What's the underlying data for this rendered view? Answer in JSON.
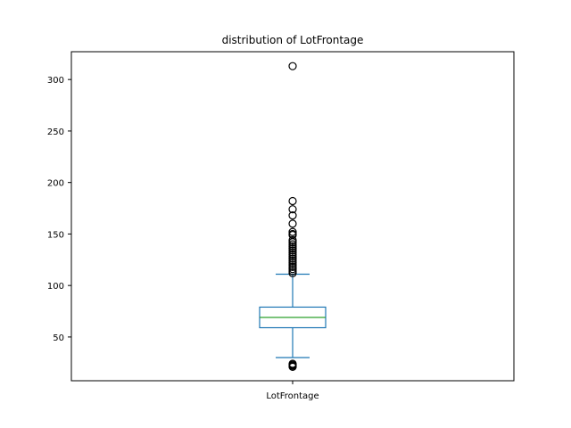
{
  "chart_data": {
    "type": "boxplot",
    "title": "distribution of LotFrontage",
    "xlabel": "",
    "ylabel": "",
    "categories": [
      "LotFrontage"
    ],
    "ylim": [
      7.5,
      327
    ],
    "yticks": [
      50,
      100,
      150,
      200,
      250,
      300
    ],
    "grid": false,
    "legend": "none",
    "series": [
      {
        "category": "LotFrontage",
        "whisker_low": 30,
        "q1": 59,
        "median": 69,
        "q3": 79,
        "whisker_high": 111,
        "outliers": [
          21,
          22,
          23,
          24,
          112,
          114,
          116,
          118,
          120,
          122,
          124,
          126,
          128,
          130,
          132,
          134,
          136,
          138,
          140,
          142,
          144,
          149,
          150,
          152,
          160,
          168,
          174,
          182,
          313
        ]
      }
    ],
    "colors": {
      "box": "#1f77b4",
      "median": "#2ca02c",
      "whisker": "#1f77b4",
      "outlier": "#000000",
      "axes": "#000000"
    }
  }
}
